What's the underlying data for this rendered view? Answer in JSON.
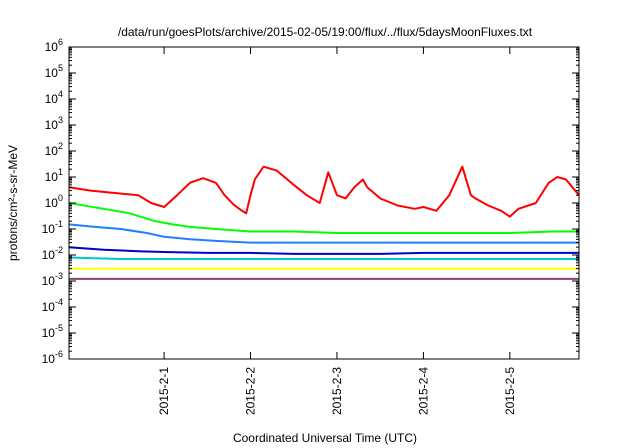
{
  "chart_data": {
    "type": "line",
    "title": "/data/run/goesPlots/archive/2015-02-05/19:00/flux/../flux/5daysMoonFluxes.txt",
    "xlabel": "Coordinated Universal Time (UTC)",
    "ylabel": "protons/cm²-s-sr-MeV",
    "y_scale": "log",
    "ylim_exp": [
      -6,
      6
    ],
    "xlim_days": [
      -1.1,
      4.8
    ],
    "x_ticks": [
      {
        "day": 0,
        "label": "2015-2-1"
      },
      {
        "day": 1,
        "label": "2015-2-2"
      },
      {
        "day": 2,
        "label": "2015-2-3"
      },
      {
        "day": 3,
        "label": "2015-2-4"
      },
      {
        "day": 4,
        "label": "2015-2-5"
      }
    ],
    "y_tick_exponents": [
      -6,
      -5,
      -4,
      -3,
      -2,
      -1,
      0,
      1,
      2,
      3,
      4,
      5,
      6
    ],
    "grid": false,
    "legend": "none",
    "series": [
      {
        "color": "#ff0000",
        "x": [
          -1.1,
          -0.85,
          -0.6,
          -0.3,
          -0.15,
          0.0,
          0.15,
          0.3,
          0.45,
          0.6,
          0.7,
          0.8,
          0.9,
          0.95,
          1.0,
          1.05,
          1.15,
          1.3,
          1.5,
          1.65,
          1.8,
          1.9,
          2.0,
          2.1,
          2.2,
          2.3,
          2.35,
          2.5,
          2.7,
          2.9,
          3.0,
          3.15,
          3.3,
          3.45,
          3.55,
          3.6,
          3.75,
          3.9,
          4.0,
          4.1,
          4.3,
          4.45,
          4.55,
          4.65,
          4.8
        ],
        "y": [
          4,
          3,
          2.5,
          2,
          1,
          0.7,
          2,
          6,
          9,
          6,
          2,
          0.9,
          0.5,
          0.4,
          2,
          8,
          25,
          18,
          5,
          2,
          1,
          15,
          2,
          1.5,
          4,
          8,
          4,
          1.5,
          0.8,
          0.6,
          0.7,
          0.5,
          2,
          25,
          2,
          1.5,
          0.8,
          0.5,
          0.3,
          0.6,
          1,
          6,
          10,
          8,
          2
        ]
      },
      {
        "color": "#00ff00",
        "x": [
          -1.1,
          -0.7,
          -0.4,
          -0.1,
          0.1,
          0.3,
          0.6,
          1.0,
          1.5,
          2.0,
          2.5,
          3.0,
          3.5,
          4.0,
          4.5,
          4.8
        ],
        "y": [
          1,
          0.6,
          0.4,
          0.2,
          0.15,
          0.12,
          0.1,
          0.08,
          0.08,
          0.07,
          0.07,
          0.07,
          0.07,
          0.07,
          0.08,
          0.08
        ]
      },
      {
        "color": "#1e7fff",
        "x": [
          -1.1,
          -0.8,
          -0.5,
          -0.2,
          0.0,
          0.3,
          0.6,
          1.0,
          1.5,
          2.0,
          2.5,
          3.0,
          3.5,
          4.0,
          4.5,
          4.8
        ],
        "y": [
          0.15,
          0.12,
          0.1,
          0.07,
          0.05,
          0.04,
          0.035,
          0.03,
          0.03,
          0.03,
          0.03,
          0.03,
          0.03,
          0.03,
          0.03,
          0.03
        ]
      },
      {
        "color": "#0000cc",
        "x": [
          -1.1,
          -0.7,
          -0.3,
          0.0,
          0.5,
          1.0,
          1.5,
          2.0,
          2.5,
          3.0,
          3.5,
          4.0,
          4.5,
          4.8
        ],
        "y": [
          0.02,
          0.016,
          0.014,
          0.013,
          0.012,
          0.012,
          0.011,
          0.011,
          0.011,
          0.012,
          0.012,
          0.012,
          0.012,
          0.012
        ]
      },
      {
        "color": "#00c8c8",
        "x": [
          -1.1,
          -0.5,
          0.0,
          0.5,
          1.0,
          1.5,
          2.0,
          2.5,
          3.0,
          3.5,
          4.0,
          4.5,
          4.8
        ],
        "y": [
          0.008,
          0.007,
          0.007,
          0.007,
          0.007,
          0.007,
          0.007,
          0.007,
          0.007,
          0.007,
          0.007,
          0.007,
          0.007
        ]
      },
      {
        "color": "#ffff00",
        "x": [
          -1.1,
          -0.5,
          0.0,
          0.5,
          1.0,
          1.5,
          2.0,
          2.5,
          3.0,
          3.5,
          4.0,
          4.5,
          4.8
        ],
        "y": [
          0.003,
          0.003,
          0.003,
          0.003,
          0.003,
          0.003,
          0.003,
          0.003,
          0.003,
          0.003,
          0.003,
          0.003,
          0.003
        ]
      },
      {
        "color": "#8c3c6e",
        "x": [
          -1.1,
          -0.5,
          0.0,
          0.5,
          1.0,
          1.5,
          2.0,
          2.5,
          3.0,
          3.5,
          4.0,
          4.5,
          4.8
        ],
        "y": [
          0.0012,
          0.0012,
          0.0012,
          0.0012,
          0.0012,
          0.0012,
          0.0012,
          0.0012,
          0.0012,
          0.0012,
          0.0012,
          0.0012,
          0.0012
        ]
      }
    ]
  }
}
